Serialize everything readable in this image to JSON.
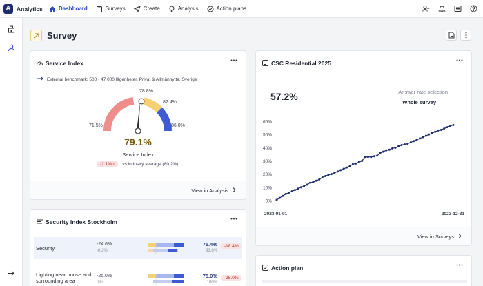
{
  "app": {
    "name": "Analytics",
    "logo_letter": "A"
  },
  "nav": [
    {
      "label": "Dashboard",
      "icon": "home-icon",
      "active": true
    },
    {
      "label": "Surveys",
      "icon": "clipboard-icon"
    },
    {
      "label": "Create",
      "icon": "send-icon"
    },
    {
      "label": "Analysis",
      "icon": "bulb-icon"
    },
    {
      "label": "Action plans",
      "icon": "check-circle-icon"
    }
  ],
  "page": {
    "title": "Survey"
  },
  "service_index": {
    "title": "Service Index",
    "benchmark": "External benchmark: 500 - 47 000 lägenheter, Privat & Allmännyttа, Sverige",
    "labels": {
      "low": "71.5%",
      "top": "78.8%",
      "upper": "82.4%",
      "high": "86.0%"
    },
    "value": "79.1%",
    "subtitle": "Service Index",
    "delta": "-1.1%pt",
    "delta_text": "vs industry average (80.2%)",
    "footer": "View in Analysis"
  },
  "csc": {
    "title": "CSC Residential 2025",
    "value": "57.2%",
    "answer_rate_label": "Answer rate selection",
    "answer_rate_value": "Whole survey",
    "footer": "View in Surveys"
  },
  "security": {
    "title": "Security index Stockholm",
    "rows": [
      {
        "name": "Security",
        "delta": "-24.6%",
        "delta2": "-6.2%",
        "value": "75.4%",
        "value2": "93.8%",
        "pill": "-18.4%"
      },
      {
        "name": "Lighting near house and surrounding area",
        "delta": "-25.0%",
        "delta2": "0%",
        "value": "75.0%",
        "value2": "100%",
        "pill": "-25.0%"
      }
    ]
  },
  "action_plan": {
    "title": "Action plan"
  },
  "chart_data": {
    "type": "line",
    "title": "",
    "xlabel": "",
    "ylabel": "",
    "x_ticks": [
      "2023-01-01",
      "2023-12-31"
    ],
    "y_ticks": [
      "0%",
      "10%",
      "20%",
      "30%",
      "40%",
      "50%",
      "60%"
    ],
    "ylim": [
      0,
      60
    ],
    "grid": false,
    "series": [
      {
        "color": "#1f2d6b",
        "values": [
          0.5,
          2,
          3.5,
          5,
          6,
          7,
          8,
          9,
          10,
          11,
          12,
          13.5,
          14,
          15,
          16,
          17.5,
          18.5,
          19.5,
          20,
          21,
          22,
          23,
          24,
          25,
          26,
          27.5,
          28,
          29,
          30,
          33,
          33,
          33,
          33.5,
          34,
          36,
          37,
          38,
          38.5,
          39.5,
          40,
          41,
          42,
          42.5,
          43,
          44,
          45,
          46,
          47,
          48,
          49,
          50,
          51,
          52,
          53,
          53.5,
          54.5,
          55.5,
          56.5,
          57.2
        ]
      }
    ]
  }
}
